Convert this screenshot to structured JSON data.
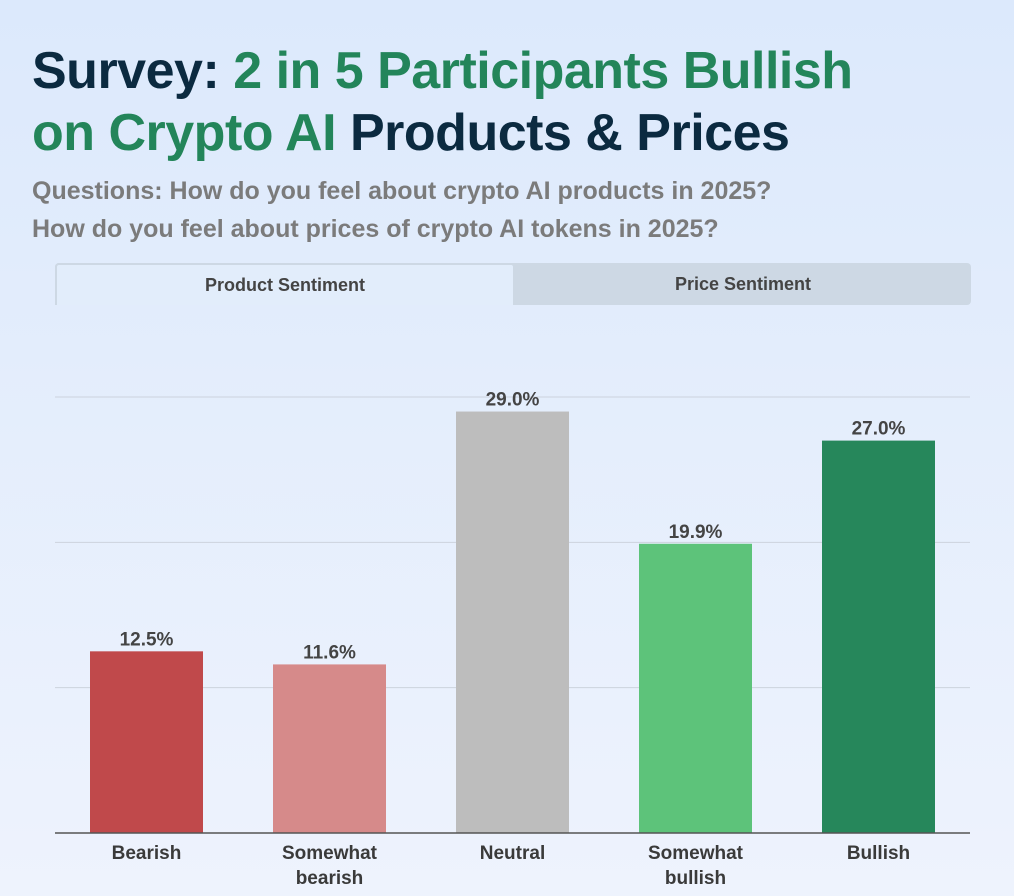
{
  "title": {
    "part1": "Survey: ",
    "part2": "2 in 5 Participants Bullish",
    "part3": "on Crypto AI",
    "part4": " Products & Prices"
  },
  "subtitle": {
    "line1": "Questions: How do you feel about crypto AI products in 2025?",
    "line2": "How do you feel about prices of crypto AI tokens in 2025?"
  },
  "tabs": [
    {
      "label": "Product Sentiment",
      "active": true
    },
    {
      "label": "Price Sentiment",
      "active": false
    }
  ],
  "colors": {
    "title": "#0b2a40",
    "accent": "#23855a"
  },
  "chart_data": {
    "type": "bar",
    "categories": [
      [
        "Bearish"
      ],
      [
        "Somewhat",
        "bearish"
      ],
      [
        "Neutral"
      ],
      [
        "Somewhat",
        "bullish"
      ],
      [
        "Bullish"
      ]
    ],
    "values": [
      12.5,
      11.6,
      29.0,
      19.9,
      27.0
    ],
    "labels": [
      "12.5%",
      "11.6%",
      "29.0%",
      "19.9%",
      "27.0%"
    ],
    "colors": [
      "#c0494b",
      "#d68a8a",
      "#bdbdbd",
      "#5dc37a",
      "#26875b"
    ],
    "ylim": [
      0,
      30
    ],
    "gridlines": [
      10,
      20,
      30
    ],
    "grid": true
  }
}
